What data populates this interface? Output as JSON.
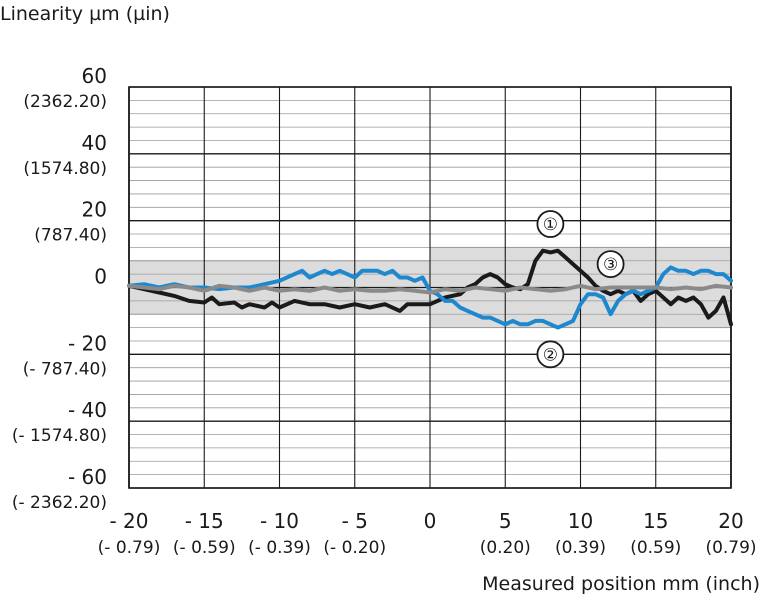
{
  "chart_data": {
    "type": "line",
    "ylabel": "Linearity µm (µin)",
    "xlabel": "Measured position mm (inch)",
    "xlim": [
      -20,
      20
    ],
    "ylim": [
      -60,
      60
    ],
    "x_ticks": [
      {
        "value": -20,
        "label": "- 20",
        "sub": "(- 0.79)"
      },
      {
        "value": -15,
        "label": "- 15",
        "sub": "(- 0.59)"
      },
      {
        "value": -10,
        "label": "- 10",
        "sub": "(- 0.39)"
      },
      {
        "value": -5,
        "label": "- 5",
        "sub": "(- 0.20)"
      },
      {
        "value": 0,
        "label": "0",
        "sub": ""
      },
      {
        "value": 5,
        "label": "5",
        "sub": "(0.20)"
      },
      {
        "value": 10,
        "label": "10",
        "sub": "(0.39)"
      },
      {
        "value": 15,
        "label": "15",
        "sub": "(0.59)"
      },
      {
        "value": 20,
        "label": "20",
        "sub": "(0.79)"
      }
    ],
    "y_ticks": [
      {
        "value": 60,
        "label": "60",
        "sub": "(2362.20)"
      },
      {
        "value": 40,
        "label": "40",
        "sub": "(1574.80)"
      },
      {
        "value": 20,
        "label": "20",
        "sub": "(787.40)"
      },
      {
        "value": 0,
        "label": "0",
        "sub": ""
      },
      {
        "value": -20,
        "label": "- 20",
        "sub": "(- 787.40)"
      },
      {
        "value": -40,
        "label": "- 40",
        "sub": "(- 1574.80)"
      },
      {
        "value": -60,
        "label": "- 60",
        "sub": "(- 2362.20)"
      }
    ],
    "tolerance_bands": [
      {
        "x": [
          -20,
          0
        ],
        "y": [
          -8,
          8
        ]
      },
      {
        "x": [
          0,
          20
        ],
        "y": [
          -12,
          12
        ]
      }
    ],
    "grid": true,
    "series": [
      {
        "name": "①",
        "color": "#1a1a1a",
        "points": [
          [
            -20,
            0.5
          ],
          [
            -19,
            -0.5
          ],
          [
            -18,
            -1.5
          ],
          [
            -17,
            -2.5
          ],
          [
            -16,
            -4
          ],
          [
            -15,
            -4.5
          ],
          [
            -14.5,
            -3
          ],
          [
            -14,
            -5
          ],
          [
            -13,
            -4.5
          ],
          [
            -12.5,
            -6
          ],
          [
            -12,
            -5
          ],
          [
            -11,
            -6
          ],
          [
            -10.5,
            -4.5
          ],
          [
            -10,
            -6
          ],
          [
            -9,
            -4
          ],
          [
            -8,
            -5
          ],
          [
            -7,
            -5
          ],
          [
            -6,
            -6
          ],
          [
            -5,
            -5
          ],
          [
            -4,
            -6
          ],
          [
            -3,
            -5
          ],
          [
            -2,
            -7
          ],
          [
            -1.5,
            -5
          ],
          [
            -1,
            -5
          ],
          [
            0,
            -5
          ],
          [
            0.5,
            -4
          ],
          [
            1,
            -3
          ],
          [
            2,
            -2
          ],
          [
            2.5,
            0
          ],
          [
            3,
            1
          ],
          [
            3.5,
            3
          ],
          [
            4,
            4
          ],
          [
            4.5,
            3
          ],
          [
            5,
            1
          ],
          [
            5.5,
            0
          ],
          [
            6,
            -0.5
          ],
          [
            6.5,
            1
          ],
          [
            7,
            8
          ],
          [
            7.5,
            11
          ],
          [
            8,
            10.5
          ],
          [
            8.5,
            11
          ],
          [
            9,
            9
          ],
          [
            9.5,
            7
          ],
          [
            10,
            5
          ],
          [
            10.5,
            3
          ],
          [
            11,
            0.5
          ],
          [
            11.5,
            -1
          ],
          [
            12,
            -2
          ],
          [
            12.5,
            -1
          ],
          [
            13,
            -2
          ],
          [
            13.5,
            -1
          ],
          [
            14,
            -4
          ],
          [
            14.5,
            -2
          ],
          [
            15,
            -1
          ],
          [
            15.5,
            -3
          ],
          [
            16,
            -5
          ],
          [
            16.5,
            -3
          ],
          [
            17,
            -4
          ],
          [
            17.5,
            -3
          ],
          [
            18,
            -5
          ],
          [
            18.5,
            -9
          ],
          [
            19,
            -7
          ],
          [
            19.5,
            -3
          ],
          [
            20,
            -11
          ]
        ]
      },
      {
        "name": "②",
        "color": "#1e88cf",
        "points": [
          [
            -20,
            0.5
          ],
          [
            -19,
            1
          ],
          [
            -18,
            0
          ],
          [
            -17,
            1
          ],
          [
            -16,
            0
          ],
          [
            -15,
            0
          ],
          [
            -14,
            -0.5
          ],
          [
            -13,
            0
          ],
          [
            -12,
            0
          ],
          [
            -11,
            1
          ],
          [
            -10,
            2
          ],
          [
            -9,
            4
          ],
          [
            -8.5,
            5
          ],
          [
            -8,
            3
          ],
          [
            -7.5,
            4
          ],
          [
            -7,
            5
          ],
          [
            -6.5,
            4
          ],
          [
            -6,
            5
          ],
          [
            -5.5,
            4
          ],
          [
            -5,
            3
          ],
          [
            -4.5,
            5
          ],
          [
            -4,
            5
          ],
          [
            -3.5,
            5
          ],
          [
            -3,
            4
          ],
          [
            -2.5,
            5
          ],
          [
            -2,
            3
          ],
          [
            -1.5,
            3
          ],
          [
            -1,
            2
          ],
          [
            -0.5,
            3
          ],
          [
            0,
            -1
          ],
          [
            0.5,
            -2
          ],
          [
            1,
            -4
          ],
          [
            1.5,
            -4
          ],
          [
            2,
            -6
          ],
          [
            2.5,
            -7
          ],
          [
            3,
            -8
          ],
          [
            3.5,
            -9
          ],
          [
            4,
            -9
          ],
          [
            4.5,
            -10
          ],
          [
            5,
            -11
          ],
          [
            5.5,
            -10
          ],
          [
            6,
            -11
          ],
          [
            6.5,
            -11
          ],
          [
            7,
            -10
          ],
          [
            7.5,
            -10
          ],
          [
            8,
            -11
          ],
          [
            8.5,
            -12
          ],
          [
            9,
            -11
          ],
          [
            9.5,
            -10
          ],
          [
            10,
            -5
          ],
          [
            10.5,
            -2
          ],
          [
            11,
            -2
          ],
          [
            11.5,
            -3
          ],
          [
            12,
            -8
          ],
          [
            12.5,
            -4
          ],
          [
            13,
            -2
          ],
          [
            13.5,
            -1
          ],
          [
            14,
            -2
          ],
          [
            14.5,
            -1
          ],
          [
            15,
            0
          ],
          [
            15.5,
            4
          ],
          [
            16,
            6
          ],
          [
            16.5,
            5
          ],
          [
            17,
            5
          ],
          [
            17.5,
            4
          ],
          [
            18,
            5
          ],
          [
            18.5,
            5
          ],
          [
            19,
            4
          ],
          [
            19.5,
            4
          ],
          [
            20,
            2
          ]
        ]
      },
      {
        "name": "③",
        "color": "#8a8a8a",
        "points": [
          [
            -20,
            0.5
          ],
          [
            -19,
            0
          ],
          [
            -18,
            -0.5
          ],
          [
            -17,
            0.5
          ],
          [
            -16,
            0
          ],
          [
            -15,
            -1
          ],
          [
            -14,
            0.5
          ],
          [
            -13,
            0
          ],
          [
            -12,
            -1
          ],
          [
            -11,
            0
          ],
          [
            -10,
            -1
          ],
          [
            -9,
            -0.5
          ],
          [
            -8,
            -1
          ],
          [
            -7,
            0
          ],
          [
            -6,
            -1
          ],
          [
            -5,
            -0.5
          ],
          [
            -4,
            -1
          ],
          [
            -3,
            -1
          ],
          [
            -2,
            -0.5
          ],
          [
            -1,
            -1
          ],
          [
            0,
            -1.5
          ],
          [
            1,
            -0.5
          ],
          [
            2,
            -1
          ],
          [
            3,
            0
          ],
          [
            4,
            -0.5
          ],
          [
            5,
            -1
          ],
          [
            6,
            0
          ],
          [
            7,
            -0.5
          ],
          [
            8,
            -1
          ],
          [
            9,
            -0.5
          ],
          [
            10,
            0.5
          ],
          [
            11,
            -0.5
          ],
          [
            12,
            0
          ],
          [
            13,
            0
          ],
          [
            14,
            0
          ],
          [
            15,
            0
          ],
          [
            16,
            -0.5
          ],
          [
            17,
            0
          ],
          [
            18,
            -0.5
          ],
          [
            19,
            0.5
          ],
          [
            20,
            0
          ]
        ]
      }
    ],
    "annotations": [
      {
        "text": "①",
        "x": 8,
        "y": 19
      },
      {
        "text": "③",
        "x": 12,
        "y": 7
      },
      {
        "text": "②",
        "x": 8,
        "y": -20
      }
    ]
  }
}
